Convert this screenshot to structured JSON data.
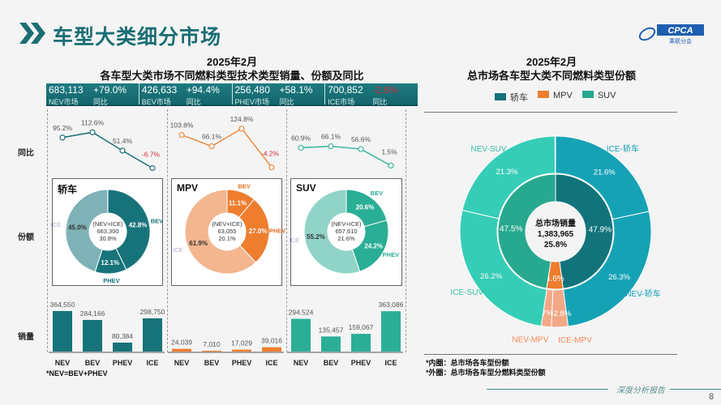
{
  "header": {
    "title": "车型大类细分市场",
    "logo_text": "CPCA",
    "logo_sub": "乘联分会"
  },
  "left": {
    "period": "2025年2月",
    "title": "各车型大类市场不同燃料类型技术类型销量、份额及同比",
    "row_labels": [
      "同比",
      "份额",
      "销量"
    ],
    "kpis": [
      {
        "value": "683,113",
        "label": "NEV市场",
        "yoy": "+79.0%",
        "yoy_label": "同比"
      },
      {
        "value": "426,633",
        "label": "BEV市场",
        "yoy": "+94.4%",
        "yoy_label": "同比"
      },
      {
        "value": "256,480",
        "label": "PHEV市场",
        "yoy": "+58.1%",
        "yoy_label": "同比"
      },
      {
        "value": "700,852",
        "label": "ICE市场",
        "yoy": "-2.6%",
        "yoy_label": "同比"
      }
    ],
    "footnote": "*NEV=BEV+PHEV"
  },
  "right": {
    "period": "2025年2月",
    "title": "总市场各车型大类不同燃料类型份额",
    "legend": [
      {
        "label": "轿车",
        "color": "#14727a"
      },
      {
        "label": "MPV",
        "color": "#ee7d2e"
      },
      {
        "label": "SUV",
        "color": "#27a98f"
      }
    ],
    "center": {
      "label": "总市场销量",
      "value": "1,383,965",
      "pct": "25.8%"
    },
    "notes": [
      "*内圈：总市场各车型份额",
      "*外圈：总市场各车型分燃料类型份额"
    ]
  },
  "footer": {
    "text": "深度分析报告",
    "page": "8"
  },
  "chart_data": [
    {
      "type": "line",
      "title": "轿车 同比",
      "categories": [
        "NEV",
        "BEV",
        "PHEV",
        "ICE"
      ],
      "values": [
        95.2,
        112.6,
        51.4,
        -6.7
      ],
      "labels": [
        "95.2%",
        "112.6%",
        "51.4%",
        "-6.7%"
      ],
      "color": "#1b6f76"
    },
    {
      "type": "line",
      "title": "MPV 同比",
      "categories": [
        "NEV",
        "BEV",
        "PHEV",
        "ICE"
      ],
      "values": [
        103.8,
        66.1,
        124.8,
        -4.2
      ],
      "labels": [
        "103.8%",
        "66.1%",
        "124.8%",
        "-4.2%"
      ],
      "color": "#e98a3c"
    },
    {
      "type": "line",
      "title": "SUV 同比",
      "categories": [
        "NEV",
        "BEV",
        "PHEV",
        "ICE"
      ],
      "values": [
        60.9,
        66.1,
        56.6,
        1.5
      ],
      "labels": [
        "60.9%",
        "66.1%",
        "56.6%",
        "1.5%"
      ],
      "color": "#3bb39c"
    },
    {
      "type": "pie",
      "title": "轿车",
      "center_lines": [
        "(NEV+ICE)",
        "663,300",
        "30.8%"
      ],
      "categories": [
        "BEV",
        "PHEV",
        "ICE"
      ],
      "values": [
        42.8,
        12.1,
        45.0
      ],
      "labels": [
        "42.8%",
        "12.1%",
        "45.0%"
      ],
      "colors": [
        "#17737a",
        "#17737a",
        "#7fb2b7"
      ]
    },
    {
      "type": "pie",
      "title": "MPV",
      "center_lines": [
        "(NEV+ICE)",
        "63,055",
        "20.1%"
      ],
      "categories": [
        "BEV",
        "PHEV",
        "ICE"
      ],
      "values": [
        11.1,
        27.0,
        61.9
      ],
      "labels": [
        "11.1%",
        "27.0%",
        "61.9%"
      ],
      "colors": [
        "#ee7d2e",
        "#ee7d2e",
        "#f3b68f"
      ]
    },
    {
      "type": "pie",
      "title": "SUV",
      "center_lines": [
        "(NEV+ICE)",
        "657,610",
        "21.6%"
      ],
      "categories": [
        "BEV",
        "PHEV",
        "ICE"
      ],
      "values": [
        20.6,
        24.2,
        55.2
      ],
      "labels": [
        "20.6%",
        "24.2%",
        "55.2%"
      ],
      "colors": [
        "#2aae95",
        "#2aae95",
        "#90d4c7"
      ]
    },
    {
      "type": "bar",
      "title": "轿车 销量",
      "categories": [
        "NEV",
        "BEV",
        "PHEV",
        "ICE"
      ],
      "values": [
        364550,
        284166,
        80384,
        298750
      ],
      "labels": [
        "364,550",
        "284,166",
        "80,384",
        "298,750"
      ],
      "color": "#17737a"
    },
    {
      "type": "bar",
      "title": "MPV 销量",
      "categories": [
        "NEV",
        "BEV",
        "PHEV",
        "ICE"
      ],
      "values": [
        24039,
        7010,
        17029,
        39016
      ],
      "labels": [
        "24,039",
        "7,010",
        "17,029",
        "39,016"
      ],
      "color": "#ee7d2e"
    },
    {
      "type": "bar",
      "title": "SUV 销量",
      "categories": [
        "NEV",
        "BEV",
        "PHEV",
        "ICE"
      ],
      "values": [
        294524,
        135457,
        159067,
        363086
      ],
      "labels": [
        "294,524",
        "135,457",
        "159,067",
        "363,086"
      ],
      "color": "#2aae95"
    },
    {
      "type": "pie",
      "title": "总市场",
      "inner": {
        "categories": [
          "轿车",
          "MPV",
          "SUV"
        ],
        "values": [
          47.9,
          4.6,
          47.5
        ],
        "labels": [
          "47.9%",
          "4.6%",
          "47.5%"
        ],
        "colors": [
          "#12737b",
          "#ee7d2e",
          "#27a98f"
        ]
      },
      "outer": {
        "categories": [
          "ICE-轿车",
          "NEV-轿车",
          "ICE-MPV",
          "NEV-MPV",
          "ICE-SUV",
          "NEV-SUV"
        ],
        "values": [
          21.6,
          26.3,
          2.8,
          1.7,
          26.2,
          21.3
        ],
        "labels": [
          "21.6%",
          "26.3%",
          "2.8%",
          "1.7%",
          "26.2%",
          "21.3%"
        ],
        "colors": [
          "#16a2b5",
          "#16a2b5",
          "#f3a886",
          "#f3a886",
          "#36cdb6",
          "#36cdb6"
        ]
      }
    }
  ]
}
